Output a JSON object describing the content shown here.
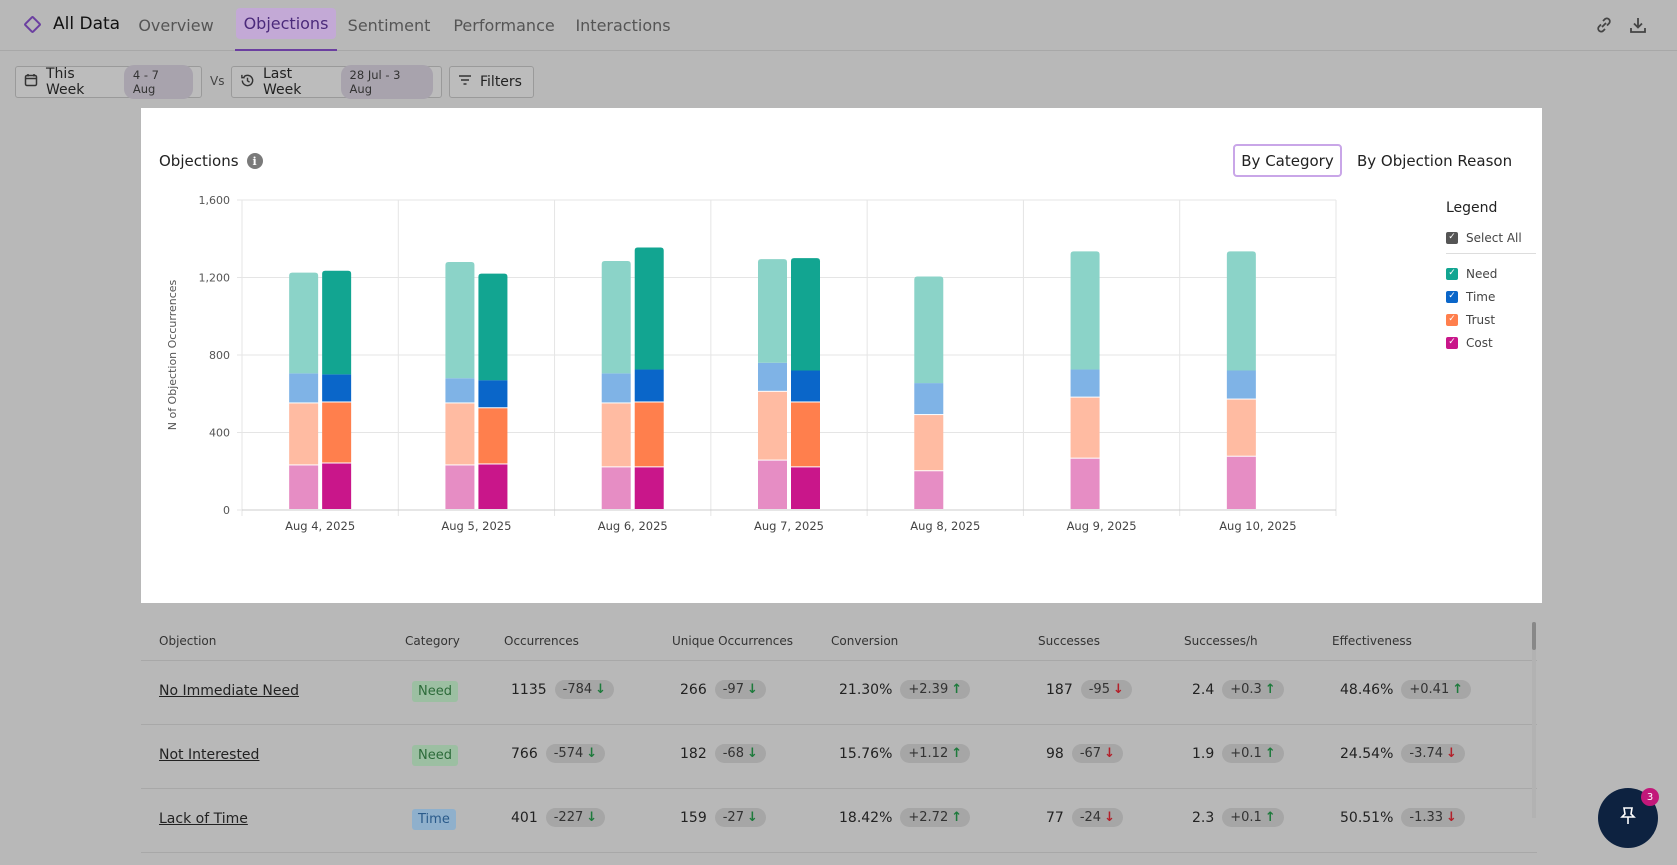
{
  "nav": {
    "brand": "All Data",
    "tabs": [
      {
        "label": "Overview"
      },
      {
        "label": "Objections",
        "active": true
      },
      {
        "label": "Sentiment"
      },
      {
        "label": "Performance"
      },
      {
        "label": "Interactions"
      }
    ],
    "icons": [
      "link-icon",
      "download-icon"
    ]
  },
  "filters": {
    "current_label": "This Week",
    "current_range": "4 - 7 Aug",
    "vs": "Vs",
    "previous_label": "Last Week",
    "previous_range": "28 Jul - 3 Aug",
    "filters_label": "Filters"
  },
  "card": {
    "title": "Objections",
    "toggle_active": "By Category",
    "toggle_other": "By Objection Reason",
    "legend": {
      "title": "Legend",
      "select_all": "Select All",
      "items": [
        {
          "label": "Need",
          "color": "#12a591"
        },
        {
          "label": "Time",
          "color": "#0a66c9"
        },
        {
          "label": "Trust",
          "color": "#ff7f4d"
        },
        {
          "label": "Cost",
          "color": "#c9168a"
        }
      ]
    }
  },
  "chart_data": {
    "type": "bar",
    "stacked": true,
    "grouped": "this week vs last week",
    "categories": [
      "Aug 4, 2025",
      "Aug 5, 2025",
      "Aug 6, 2025",
      "Aug 7, 2025",
      "Aug 8, 2025",
      "Aug 9, 2025",
      "Aug 10, 2025"
    ],
    "ylabel": "N of Objection Occurrences",
    "ylim": [
      0,
      1600
    ],
    "yticks": [
      "0",
      "400",
      "800",
      "1,200",
      "1,600"
    ],
    "series_order": [
      "Cost",
      "Trust",
      "Time",
      "Need"
    ],
    "colors_previous": {
      "Need": "#8bd3c8",
      "Time": "#7fb3e6",
      "Trust": "#ffbba2",
      "Cost": "#e68dc4"
    },
    "colors_current": {
      "Need": "#12a591",
      "Time": "#0a66c9",
      "Trust": "#ff7f4d",
      "Cost": "#c9168a"
    },
    "previous": {
      "Cost": [
        230,
        230,
        220,
        255,
        200,
        265,
        275
      ],
      "Trust": [
        320,
        320,
        330,
        355,
        290,
        315,
        295
      ],
      "Time": [
        155,
        130,
        155,
        150,
        165,
        145,
        150
      ],
      "Need": [
        520,
        600,
        580,
        535,
        550,
        610,
        615
      ]
    },
    "current": {
      "Cost": [
        240,
        235,
        220,
        220,
        null,
        null,
        null
      ],
      "Trust": [
        315,
        290,
        335,
        335,
        null,
        null,
        null
      ],
      "Time": [
        145,
        145,
        170,
        165,
        null,
        null,
        null
      ],
      "Need": [
        535,
        550,
        630,
        580,
        null,
        null,
        null
      ]
    },
    "grid": true,
    "legend_position": "right"
  },
  "table": {
    "headers": [
      "Objection",
      "Category",
      "Occurrences",
      "Unique Occurrences",
      "Conversion",
      "Successes",
      "Successes/h",
      "Effectiveness"
    ],
    "rows": [
      {
        "objection": "No Immediate Need",
        "category": "Need",
        "occ": "1135",
        "occ_d": "-784",
        "occ_dir": "down",
        "occ_good": true,
        "uocc": "266",
        "uocc_d": "-97",
        "uocc_dir": "down",
        "uocc_good": true,
        "conv": "21.30%",
        "conv_d": "+2.39",
        "conv_dir": "up",
        "conv_good": true,
        "succ": "187",
        "succ_d": "-95",
        "succ_dir": "down",
        "succ_good": false,
        "sph": "2.4",
        "sph_d": "+0.3",
        "sph_dir": "up",
        "sph_good": true,
        "eff": "48.46%",
        "eff_d": "+0.41",
        "eff_dir": "up",
        "eff_good": true
      },
      {
        "objection": "Not Interested",
        "category": "Need",
        "occ": "766",
        "occ_d": "-574",
        "occ_dir": "down",
        "occ_good": true,
        "uocc": "182",
        "uocc_d": "-68",
        "uocc_dir": "down",
        "uocc_good": true,
        "conv": "15.76%",
        "conv_d": "+1.12",
        "conv_dir": "up",
        "conv_good": true,
        "succ": "98",
        "succ_d": "-67",
        "succ_dir": "down",
        "succ_good": false,
        "sph": "1.9",
        "sph_d": "+0.1",
        "sph_dir": "up",
        "sph_good": true,
        "eff": "24.54%",
        "eff_d": "-3.74",
        "eff_dir": "down",
        "eff_good": false
      },
      {
        "objection": "Lack of Time",
        "category": "Time",
        "occ": "401",
        "occ_d": "-227",
        "occ_dir": "down",
        "occ_good": true,
        "uocc": "159",
        "uocc_d": "-27",
        "uocc_dir": "down",
        "uocc_good": true,
        "conv": "18.42%",
        "conv_d": "+2.72",
        "conv_dir": "up",
        "conv_good": true,
        "succ": "77",
        "succ_d": "-24",
        "succ_dir": "down",
        "succ_good": false,
        "sph": "2.3",
        "sph_d": "+0.1",
        "sph_dir": "up",
        "sph_good": true,
        "eff": "50.51%",
        "eff_d": "-1.33",
        "eff_dir": "down",
        "eff_good": false
      }
    ]
  },
  "fab": {
    "icon": "pin-icon",
    "badge": "3"
  }
}
